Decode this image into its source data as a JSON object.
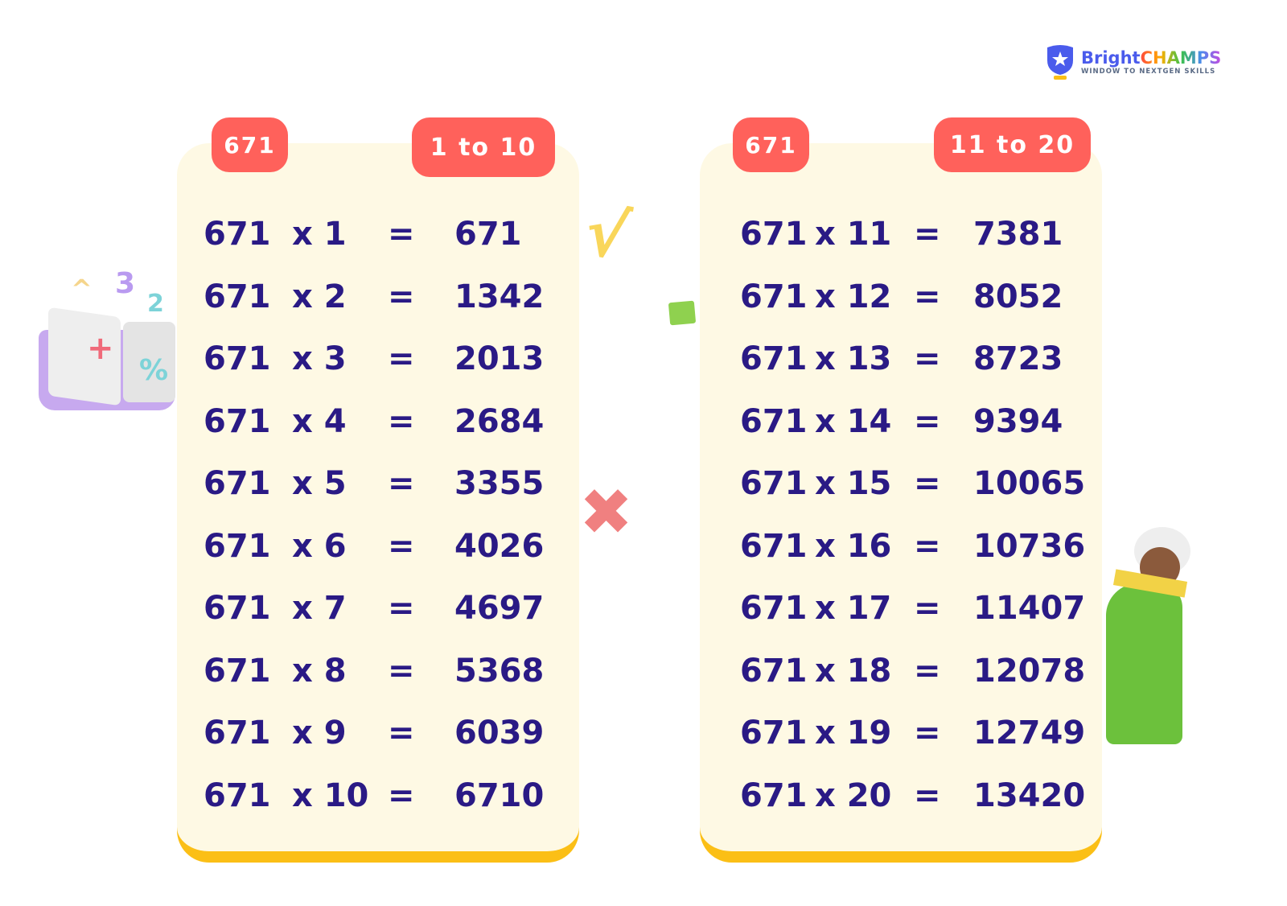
{
  "brand": {
    "name_part1": "Bright",
    "name_part2": "CHAMPS",
    "tagline": "WINDOW TO NEXTGEN SKILLS",
    "colors": {
      "blue": "#4a5bec",
      "accent": "#ff615b",
      "ink": "#2a1a85",
      "card": "#fef9e4",
      "border": "#fbbf16"
    }
  },
  "tables": [
    {
      "number_badge": "671",
      "range_badge": "1 to 10",
      "rows": [
        {
          "base": "671",
          "mult": "x 1",
          "eq": "=",
          "result": "671"
        },
        {
          "base": "671",
          "mult": "x 2",
          "eq": "=",
          "result": "1342"
        },
        {
          "base": "671",
          "mult": "x 3",
          "eq": "=",
          "result": "2013"
        },
        {
          "base": "671",
          "mult": "x 4",
          "eq": "=",
          "result": "2684"
        },
        {
          "base": "671",
          "mult": "x 5",
          "eq": "=",
          "result": "3355"
        },
        {
          "base": "671",
          "mult": "x 6",
          "eq": "=",
          "result": "4026"
        },
        {
          "base": "671",
          "mult": "x 7",
          "eq": "=",
          "result": "4697"
        },
        {
          "base": "671",
          "mult": "x 8",
          "eq": "=",
          "result": "5368"
        },
        {
          "base": "671",
          "mult": "x 9",
          "eq": "=",
          "result": "6039"
        },
        {
          "base": "671",
          "mult": "x 10",
          "eq": "=",
          "result": "6710"
        }
      ]
    },
    {
      "number_badge": "671",
      "range_badge": "11 to 20",
      "rows": [
        {
          "base": "671",
          "mult": "x 11",
          "eq": "=",
          "result": "7381"
        },
        {
          "base": "671",
          "mult": "x 12",
          "eq": "=",
          "result": "8052"
        },
        {
          "base": "671",
          "mult": "x 13",
          "eq": "=",
          "result": "8723"
        },
        {
          "base": "671",
          "mult": "x 14",
          "eq": "=",
          "result": "9394"
        },
        {
          "base": "671",
          "mult": "x 15",
          "eq": "=",
          "result": "10065"
        },
        {
          "base": "671",
          "mult": "x 16",
          "eq": "=",
          "result": "10736"
        },
        {
          "base": "671",
          "mult": "x 17",
          "eq": "=",
          "result": "11407"
        },
        {
          "base": "671",
          "mult": "x 18",
          "eq": "=",
          "result": "12078"
        },
        {
          "base": "671",
          "mult": "x 19",
          "eq": "=",
          "result": "12749"
        },
        {
          "base": "671",
          "mult": "x 20",
          "eq": "=",
          "result": "13420"
        }
      ]
    }
  ]
}
